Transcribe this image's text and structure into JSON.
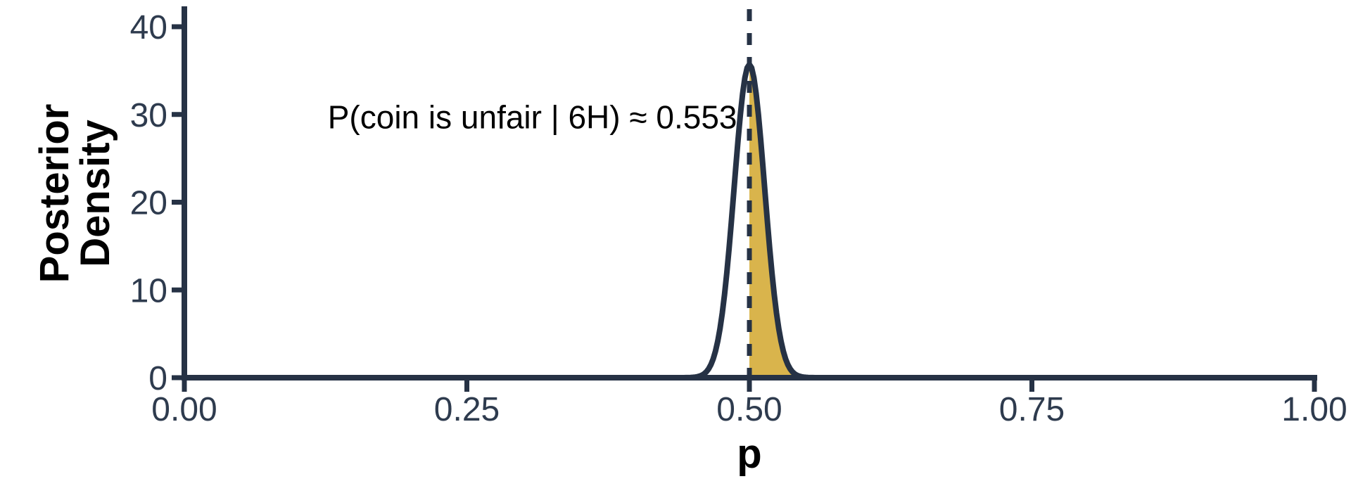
{
  "figure": {
    "background": "#ffffff"
  },
  "colors": {
    "axis": "#263245",
    "curve": "#263245",
    "shaded_fill": "#D9B44C",
    "tick_label": "#2e3b4e",
    "axis_title": "#000000",
    "annotation_text": "#000000"
  },
  "chart_data": {
    "type": "area",
    "title": "",
    "xlabel": "p",
    "ylabel": "Posterior Density",
    "ylabel_lines": [
      "Posterior",
      "Density"
    ],
    "xlim": [
      0,
      1
    ],
    "ylim": [
      0,
      40
    ],
    "grid": false,
    "legend": false,
    "x_ticks": [
      {
        "value": 0.0,
        "label": "0.00"
      },
      {
        "value": 0.25,
        "label": "0.25"
      },
      {
        "value": 0.5,
        "label": "0.50"
      },
      {
        "value": 0.75,
        "label": "0.75"
      },
      {
        "value": 1.0,
        "label": "1.00"
      }
    ],
    "y_ticks": [
      {
        "value": 0,
        "label": "0"
      },
      {
        "value": 10,
        "label": "10"
      },
      {
        "value": 20,
        "label": "20"
      },
      {
        "value": 30,
        "label": "30"
      },
      {
        "value": 40,
        "label": "40"
      }
    ],
    "series": [
      {
        "name": "posterior-density",
        "shape": "gaussian",
        "mean": 0.5,
        "sd": 0.0135,
        "peak_density": 35.7,
        "sample_points": {
          "x": [
            0.0,
            0.1,
            0.2,
            0.3,
            0.4,
            0.45,
            0.46,
            0.47,
            0.48,
            0.49,
            0.5,
            0.51,
            0.52,
            0.53,
            0.54,
            0.55,
            0.6,
            0.7,
            0.8,
            0.9,
            1.0
          ],
          "density": [
            0,
            0,
            0,
            0,
            0,
            0.04,
            0.44,
            3.0,
            11.9,
            27.1,
            35.7,
            27.1,
            11.9,
            3.0,
            0.44,
            0.04,
            0,
            0,
            0,
            0,
            0
          ]
        }
      }
    ],
    "shaded_region": {
      "x_from": 0.5,
      "x_to": 1.0
    },
    "reference_line": {
      "x": 0.5,
      "style": "dashed"
    },
    "annotation": {
      "text": "P(coin is unfair | 6H) ≈ 0.553",
      "x": 0.308,
      "y": 29.7
    }
  }
}
